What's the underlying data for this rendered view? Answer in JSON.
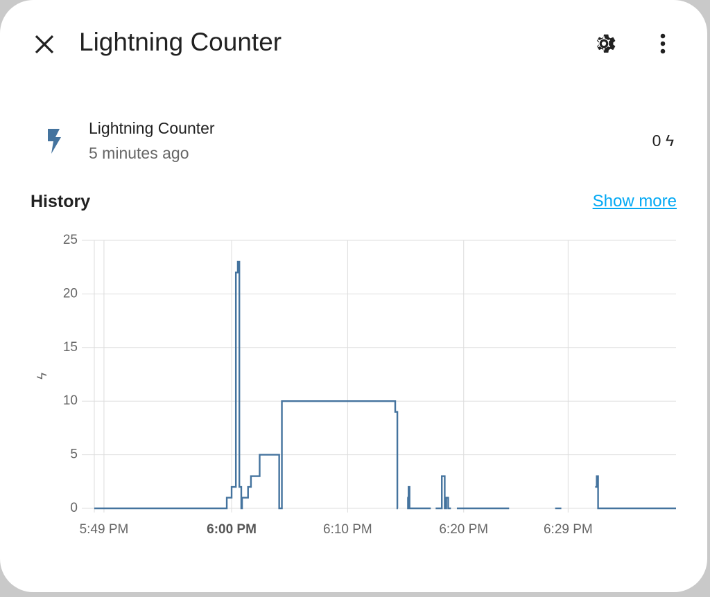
{
  "header": {
    "title": "Lightning Counter"
  },
  "entity": {
    "name": "Lightning Counter",
    "last_changed": "5 minutes ago",
    "state": "0",
    "unit": "ϟ"
  },
  "history": {
    "title": "History",
    "link": "Show more"
  },
  "chart_data": {
    "type": "line",
    "step": true,
    "y_label": "ϟ",
    "color": "#44739e",
    "grid": true,
    "x": [
      "17:48:10",
      "17:59:35",
      "18:00:00",
      "18:00:22",
      "18:00:32",
      "18:00:40",
      "18:00:50",
      "18:00:54",
      "18:01:25",
      "18:01:40",
      "18:02:25",
      "18:04:06",
      "18:04:20",
      "18:14:06",
      "18:14:17",
      "18:14:20",
      "18:15:08",
      "18:15:12",
      "18:15:15",
      "18:15:20",
      "18:17:10",
      "18:17:35",
      "18:18:07",
      "18:18:22",
      "18:18:30",
      "18:18:40",
      "18:18:54",
      "18:19:25",
      "18:23:55",
      "18:27:53",
      "18:28:25",
      "18:31:20",
      "18:31:28",
      "18:31:35",
      "18:38:18"
    ],
    "values": [
      0,
      1,
      2,
      22,
      23,
      2,
      0,
      1,
      2,
      3,
      5,
      0,
      10,
      9,
      0,
      null,
      1,
      0,
      2,
      0,
      null,
      0,
      3,
      0,
      1,
      0,
      null,
      0,
      null,
      0,
      null,
      2,
      3,
      0,
      0
    ],
    "xlim": [
      "17:48:10",
      "18:38:18"
    ],
    "xticks": [
      {
        "value": "17:49:00",
        "label": "5:49 PM"
      },
      {
        "value": "18:00:00",
        "label": "6:00 PM",
        "bold": true
      },
      {
        "value": "18:10:00",
        "label": "6:10 PM"
      },
      {
        "value": "18:20:00",
        "label": "6:20 PM"
      },
      {
        "value": "18:29:00",
        "label": "6:29 PM"
      }
    ],
    "ylim": [
      0,
      25
    ],
    "yticks": [
      0,
      5,
      10,
      15,
      20,
      25
    ]
  }
}
